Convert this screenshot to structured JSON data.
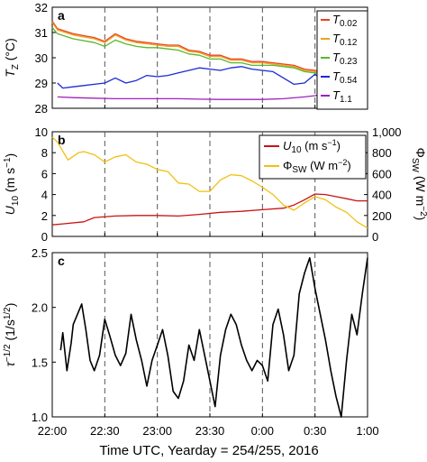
{
  "figure": {
    "xlabel": "Time UTC, Yearday = 254/255, 2016",
    "x_ticks": [
      "22:00",
      "22:30",
      "23:00",
      "23:30",
      "0:00",
      "0:30",
      "1:00"
    ],
    "x_tick_hours": [
      0,
      0.5,
      1.0,
      1.5,
      2.0,
      2.5,
      3.0
    ],
    "xlim": [
      0,
      3.0
    ]
  },
  "chart_data": [
    {
      "type": "line",
      "panel_label": "a",
      "ylabel_main": "T",
      "ylabel_sub": "Z",
      "ylabel_unit": "(°C)",
      "ylim": [
        28,
        32
      ],
      "y_ticks": [
        "28",
        "29",
        "30",
        "31",
        "32"
      ],
      "legend_position": "top-right",
      "series": [
        {
          "name_main": "T",
          "name_sub": "0.02",
          "color": "#e8431e",
          "x": [
            0,
            0.05,
            0.2,
            0.4,
            0.5,
            0.6,
            0.7,
            0.8,
            0.9,
            1.0,
            1.1,
            1.2,
            1.3,
            1.4,
            1.5,
            1.6,
            1.7,
            1.8,
            1.9,
            2.0,
            2.1,
            2.2,
            2.3,
            2.4,
            2.5,
            2.6,
            2.7,
            2.8,
            2.85
          ],
          "y": [
            31.45,
            31.15,
            30.95,
            30.8,
            30.65,
            30.95,
            30.75,
            30.65,
            30.6,
            30.55,
            30.5,
            30.5,
            30.3,
            30.25,
            30.1,
            30.1,
            29.95,
            29.95,
            29.85,
            29.85,
            29.8,
            29.75,
            29.7,
            29.55,
            29.5,
            29.45,
            29.4,
            29.3,
            29.3
          ]
        },
        {
          "name_main": "T",
          "name_sub": "0.12",
          "color": "#f0a020",
          "x": [
            0,
            0.05,
            0.2,
            0.4,
            0.5,
            0.6,
            0.7,
            0.8,
            0.9,
            1.0,
            1.1,
            1.2,
            1.3,
            1.4,
            1.5,
            1.6,
            1.7,
            1.8,
            1.9,
            2.0,
            2.1,
            2.2,
            2.3,
            2.4,
            2.5,
            2.6,
            2.7,
            2.8,
            2.85
          ],
          "y": [
            31.4,
            31.1,
            30.9,
            30.75,
            30.6,
            30.9,
            30.7,
            30.6,
            30.55,
            30.5,
            30.45,
            30.45,
            30.25,
            30.2,
            30.05,
            30.05,
            29.9,
            29.9,
            29.8,
            29.8,
            29.75,
            29.7,
            29.65,
            29.5,
            29.45,
            29.4,
            29.35,
            29.3,
            29.3
          ]
        },
        {
          "name_main": "T",
          "name_sub": "0.23",
          "color": "#58b830",
          "x": [
            0,
            0.05,
            0.2,
            0.4,
            0.5,
            0.6,
            0.7,
            0.8,
            0.9,
            1.0,
            1.1,
            1.2,
            1.3,
            1.4,
            1.5,
            1.6,
            1.7,
            1.8,
            1.9,
            2.0,
            2.1,
            2.2,
            2.3,
            2.4,
            2.5,
            2.6,
            2.7,
            2.8,
            2.85
          ],
          "y": [
            31.2,
            30.95,
            30.75,
            30.6,
            30.45,
            30.7,
            30.55,
            30.45,
            30.4,
            30.4,
            30.35,
            30.3,
            30.15,
            30.1,
            29.95,
            29.95,
            29.8,
            29.8,
            29.7,
            29.7,
            29.7,
            29.65,
            29.6,
            29.45,
            29.4,
            29.35,
            29.3,
            29.25,
            29.25
          ]
        },
        {
          "name_main": "T",
          "name_sub": "0.54",
          "color": "#1a2ad8",
          "x": [
            0.05,
            0.1,
            0.2,
            0.3,
            0.4,
            0.5,
            0.6,
            0.7,
            0.8,
            0.9,
            1.0,
            1.1,
            1.2,
            1.3,
            1.4,
            1.5,
            1.6,
            1.7,
            1.8,
            1.9,
            2.0,
            2.1,
            2.2,
            2.3,
            2.4,
            2.5,
            2.6,
            2.7,
            2.8,
            2.85
          ],
          "y": [
            29.0,
            28.8,
            28.85,
            28.9,
            28.95,
            29.0,
            29.2,
            29.0,
            29.1,
            29.3,
            29.25,
            29.3,
            29.4,
            29.5,
            29.6,
            29.55,
            29.5,
            29.6,
            29.65,
            29.55,
            29.5,
            29.45,
            29.2,
            28.95,
            29.0,
            29.35,
            29.0,
            28.9,
            29.15,
            29.2
          ]
        },
        {
          "name_main": "T",
          "name_sub": "1.1",
          "color": "#a020c0",
          "x": [
            0.05,
            0.2,
            0.4,
            0.6,
            0.8,
            1.0,
            1.2,
            1.4,
            1.6,
            1.8,
            2.0,
            2.2,
            2.4,
            2.5,
            2.6,
            2.7,
            2.8,
            2.85
          ],
          "y": [
            28.45,
            28.42,
            28.4,
            28.38,
            28.38,
            28.38,
            28.38,
            28.36,
            28.35,
            28.35,
            28.35,
            28.38,
            28.45,
            28.5,
            28.6,
            28.75,
            28.9,
            28.95
          ]
        }
      ]
    },
    {
      "type": "line",
      "panel_label": "b",
      "ylabel_main": "U",
      "ylabel_sub": "10",
      "ylabel_unit": "(m s",
      "ylabel_exp": "−1",
      "ylabel_close": ")",
      "ylim": [
        0,
        10
      ],
      "y_ticks": [
        "0",
        "2",
        "4",
        "6",
        "8",
        "10"
      ],
      "ylabel_right_main": "Φ",
      "ylabel_right_sub": "SW",
      "ylabel_right_unit": "(W m",
      "ylabel_right_exp": "−2",
      "ylabel_right_close": ")",
      "ylim_right": [
        0,
        1000
      ],
      "y_ticks_right": [
        "0",
        "200",
        "400",
        "600",
        "800",
        "1,000"
      ],
      "legend_position": "top-right",
      "series": [
        {
          "name_main": "U",
          "name_sub": "10",
          "name_unit": " (m s",
          "name_exp": "−1",
          "name_close": ")",
          "color": "#c81414",
          "axis": "left",
          "x": [
            0,
            0.1,
            0.3,
            0.4,
            0.6,
            0.8,
            1.0,
            1.2,
            1.4,
            1.6,
            1.8,
            2.0,
            2.2,
            2.3,
            2.4,
            2.5,
            2.6,
            2.7,
            2.8,
            2.9,
            3.0
          ],
          "y": [
            1.1,
            1.2,
            1.4,
            1.8,
            1.95,
            2.0,
            2.0,
            1.95,
            2.1,
            2.3,
            2.4,
            2.55,
            2.7,
            3.0,
            3.5,
            4.05,
            4.0,
            3.8,
            3.6,
            3.4,
            3.4
          ]
        },
        {
          "name_main": "Φ",
          "name_sub": "SW",
          "name_unit": " (W m",
          "name_exp": "−2",
          "name_close": ")",
          "color": "#f0c010",
          "axis": "right",
          "x": [
            0,
            0.05,
            0.15,
            0.25,
            0.3,
            0.4,
            0.5,
            0.6,
            0.7,
            0.8,
            0.9,
            1.0,
            1.1,
            1.2,
            1.3,
            1.4,
            1.5,
            1.6,
            1.7,
            1.8,
            1.9,
            2.0,
            2.1,
            2.2,
            2.3,
            2.4,
            2.5,
            2.6,
            2.7,
            2.8,
            2.9,
            3.0
          ],
          "y": [
            950,
            900,
            730,
            800,
            810,
            780,
            710,
            760,
            780,
            710,
            690,
            640,
            620,
            510,
            500,
            430,
            430,
            540,
            590,
            580,
            530,
            470,
            400,
            300,
            250,
            320,
            380,
            350,
            280,
            230,
            140,
            80
          ]
        }
      ]
    },
    {
      "type": "line",
      "panel_label": "c",
      "ylabel_main": "τ",
      "ylabel_exp": "−1/2",
      "ylabel_unit": "(1/s",
      "ylabel_unit_exp": "1/2",
      "ylabel_close": ")",
      "ylim": [
        1.0,
        2.6
      ],
      "y_ticks": [
        "1.0",
        "1.5",
        "2.0",
        "2.5"
      ],
      "series": [
        {
          "color": "#000000",
          "x": [
            0.08,
            0.1,
            0.14,
            0.18,
            0.2,
            0.24,
            0.28,
            0.32,
            0.36,
            0.4,
            0.45,
            0.5,
            0.55,
            0.6,
            0.65,
            0.7,
            0.75,
            0.8,
            0.85,
            0.9,
            0.95,
            1.0,
            1.05,
            1.1,
            1.15,
            1.2,
            1.25,
            1.3,
            1.35,
            1.4,
            1.45,
            1.5,
            1.55,
            1.6,
            1.65,
            1.7,
            1.75,
            1.8,
            1.85,
            1.9,
            1.95,
            2.0,
            2.05,
            2.1,
            2.15,
            2.2,
            2.25,
            2.3,
            2.35,
            2.4,
            2.45,
            2.5,
            2.55,
            2.6,
            2.65,
            2.7,
            2.75,
            2.8,
            2.85,
            2.9,
            2.95,
            3.0
          ],
          "y": [
            1.65,
            1.82,
            1.45,
            1.72,
            1.9,
            2.0,
            2.1,
            1.85,
            1.55,
            1.45,
            1.6,
            1.95,
            1.78,
            1.6,
            1.5,
            1.62,
            2.0,
            1.75,
            1.55,
            1.3,
            1.55,
            1.7,
            1.85,
            1.6,
            1.25,
            1.18,
            1.35,
            1.7,
            1.55,
            1.85,
            1.6,
            1.35,
            1.1,
            1.6,
            1.85,
            2.0,
            1.9,
            1.7,
            1.55,
            1.45,
            1.55,
            1.5,
            1.35,
            1.9,
            2.05,
            1.8,
            1.45,
            1.6,
            2.2,
            2.4,
            2.55,
            2.25,
            2.0,
            1.75,
            1.45,
            1.2,
            1.0,
            1.55,
            2.0,
            1.8,
            2.2,
            2.55
          ]
        }
      ]
    }
  ]
}
